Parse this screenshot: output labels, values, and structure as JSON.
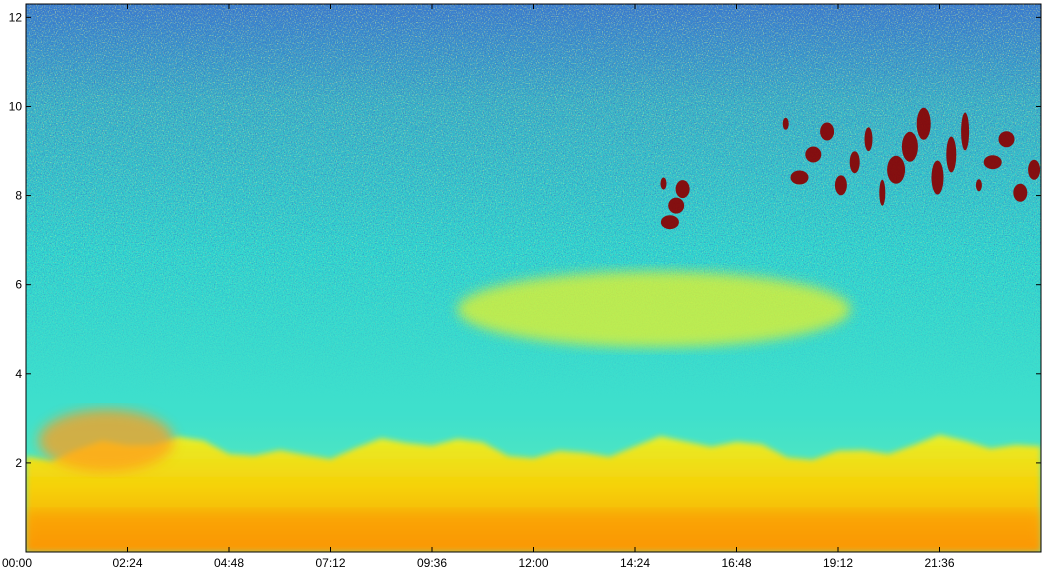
{
  "chart_data": {
    "type": "heatmap",
    "title": "",
    "xlabel": "",
    "ylabel": "",
    "x_ticks": [
      "00:00",
      "02:24",
      "04:48",
      "07:12",
      "09:36",
      "12:00",
      "14:24",
      "16:48",
      "19:12",
      "21:36"
    ],
    "x_range_hours": [
      0,
      24
    ],
    "y_ticks": [
      2,
      4,
      6,
      8,
      10,
      12
    ],
    "y_range": [
      0,
      12.3
    ],
    "grid": false,
    "legend": "none",
    "colormap": [
      "#00007f",
      "#0000ff",
      "#007fff",
      "#00ffff",
      "#7fff7f",
      "#ffff00",
      "#ff7f00",
      "#ff0000",
      "#7f0000"
    ],
    "features": [
      {
        "kind": "boundary_layer",
        "t_start": 0.0,
        "t_end": 24.0,
        "top_level": 2.6
      },
      {
        "kind": "residual_layer",
        "t_start": 0.3,
        "t_end": 3.5,
        "base_level": 1.8,
        "top_level": 3.2
      },
      {
        "kind": "aerosol_layer",
        "t_start": 10.2,
        "t_end": 19.5,
        "base_level": 4.6,
        "top_level": 6.3
      },
      {
        "kind": "cloud",
        "t_start": 15.0,
        "t_end": 15.6,
        "base_level": 6.1,
        "top_level": 9.2
      },
      {
        "kind": "cloud",
        "t_start": 17.8,
        "t_end": 24.0,
        "base_level": 6.6,
        "top_level": 10.9
      }
    ]
  }
}
